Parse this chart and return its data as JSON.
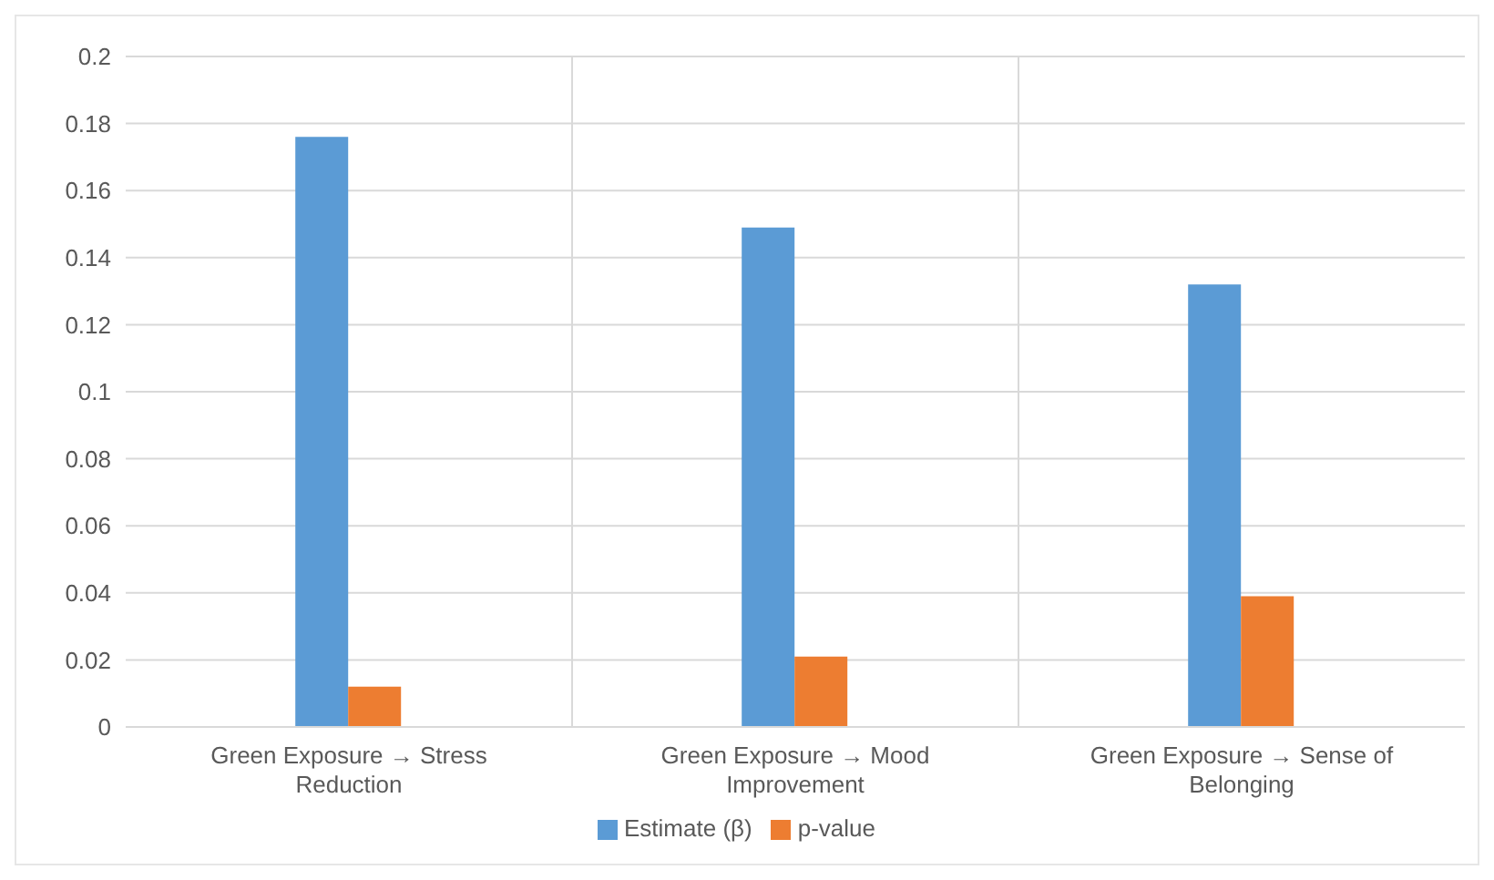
{
  "chart_data": {
    "type": "bar",
    "categories": [
      "Green Exposure → Stress Reduction",
      "Green Exposure → Mood Improvement",
      "Green Exposure → Sense of Belonging"
    ],
    "series": [
      {
        "name": "Estimate (β)",
        "color": "#5b9bd5",
        "values": [
          0.176,
          0.149,
          0.132
        ]
      },
      {
        "name": "p-value",
        "color": "#ed7d31",
        "values": [
          0.012,
          0.021,
          0.039
        ]
      }
    ],
    "ylim": [
      0,
      0.2
    ],
    "yticks": [
      0,
      0.02,
      0.04,
      0.06,
      0.08,
      0.1,
      0.12,
      0.14,
      0.16,
      0.18,
      0.2
    ],
    "grid": true,
    "legend": "bottom"
  }
}
